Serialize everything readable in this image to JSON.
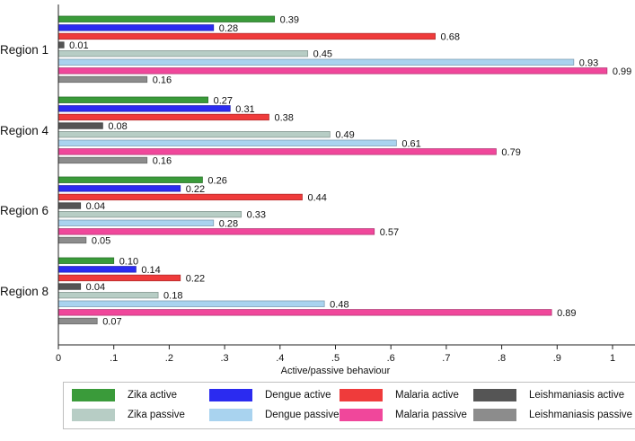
{
  "chart_data": {
    "type": "bar",
    "orientation": "horizontal",
    "xlabel": "Active/passive behaviour",
    "xlim": [
      0,
      1.05
    ],
    "xticks": [
      "0",
      ".1",
      ".2",
      ".3",
      ".4",
      ".5",
      ".6",
      ".7",
      ".8",
      ".9",
      "1"
    ],
    "categories": [
      "Region 1",
      "Region 4",
      "Region 6",
      "Region 8"
    ],
    "series": [
      {
        "name": "Zika active",
        "color": "#3a9b3a",
        "values": [
          0.39,
          0.27,
          0.26,
          0.1
        ],
        "labels": [
          "0.39",
          "0.27",
          "0.26",
          "0.10"
        ]
      },
      {
        "name": "Dengue active",
        "color": "#2b2bf0",
        "values": [
          0.28,
          0.31,
          0.22,
          0.14
        ],
        "labels": [
          "0.28",
          "0.31",
          "0.22",
          "0.14"
        ]
      },
      {
        "name": "Malaria active",
        "color": "#ef3b3b",
        "values": [
          0.68,
          0.38,
          0.44,
          0.22
        ],
        "labels": [
          "0.68",
          "0.38",
          "0.44",
          "0.22"
        ]
      },
      {
        "name": "Leishmaniasis active",
        "color": "#555555",
        "values": [
          0.01,
          0.08,
          0.04,
          0.04
        ],
        "labels": [
          "0.01",
          "0.08",
          "0.04",
          "0.04"
        ]
      },
      {
        "name": "Zika passive",
        "color": "#b7cdc5",
        "values": [
          0.45,
          0.49,
          0.33,
          0.18
        ],
        "labels": [
          "0.45",
          "0.49",
          "0.33",
          "0.18"
        ]
      },
      {
        "name": "Dengue passive",
        "color": "#a9d3ef",
        "values": [
          0.93,
          0.61,
          0.28,
          0.48
        ],
        "labels": [
          "0.93",
          "0.61",
          "0.28",
          "0.48"
        ]
      },
      {
        "name": "Malaria passive",
        "color": "#f0479b",
        "values": [
          0.99,
          0.79,
          0.57,
          0.89
        ],
        "labels": [
          "0.99",
          "0.79",
          "0.57",
          "0.89"
        ]
      },
      {
        "name": "Leishmaniasis passive",
        "color": "#8c8c8c",
        "values": [
          0.16,
          0.16,
          0.05,
          0.07
        ],
        "labels": [
          "0.16",
          "0.16",
          "0.05",
          "0.07"
        ]
      }
    ],
    "legend": {
      "position": "bottom",
      "columns": 4
    },
    "grid": false
  }
}
